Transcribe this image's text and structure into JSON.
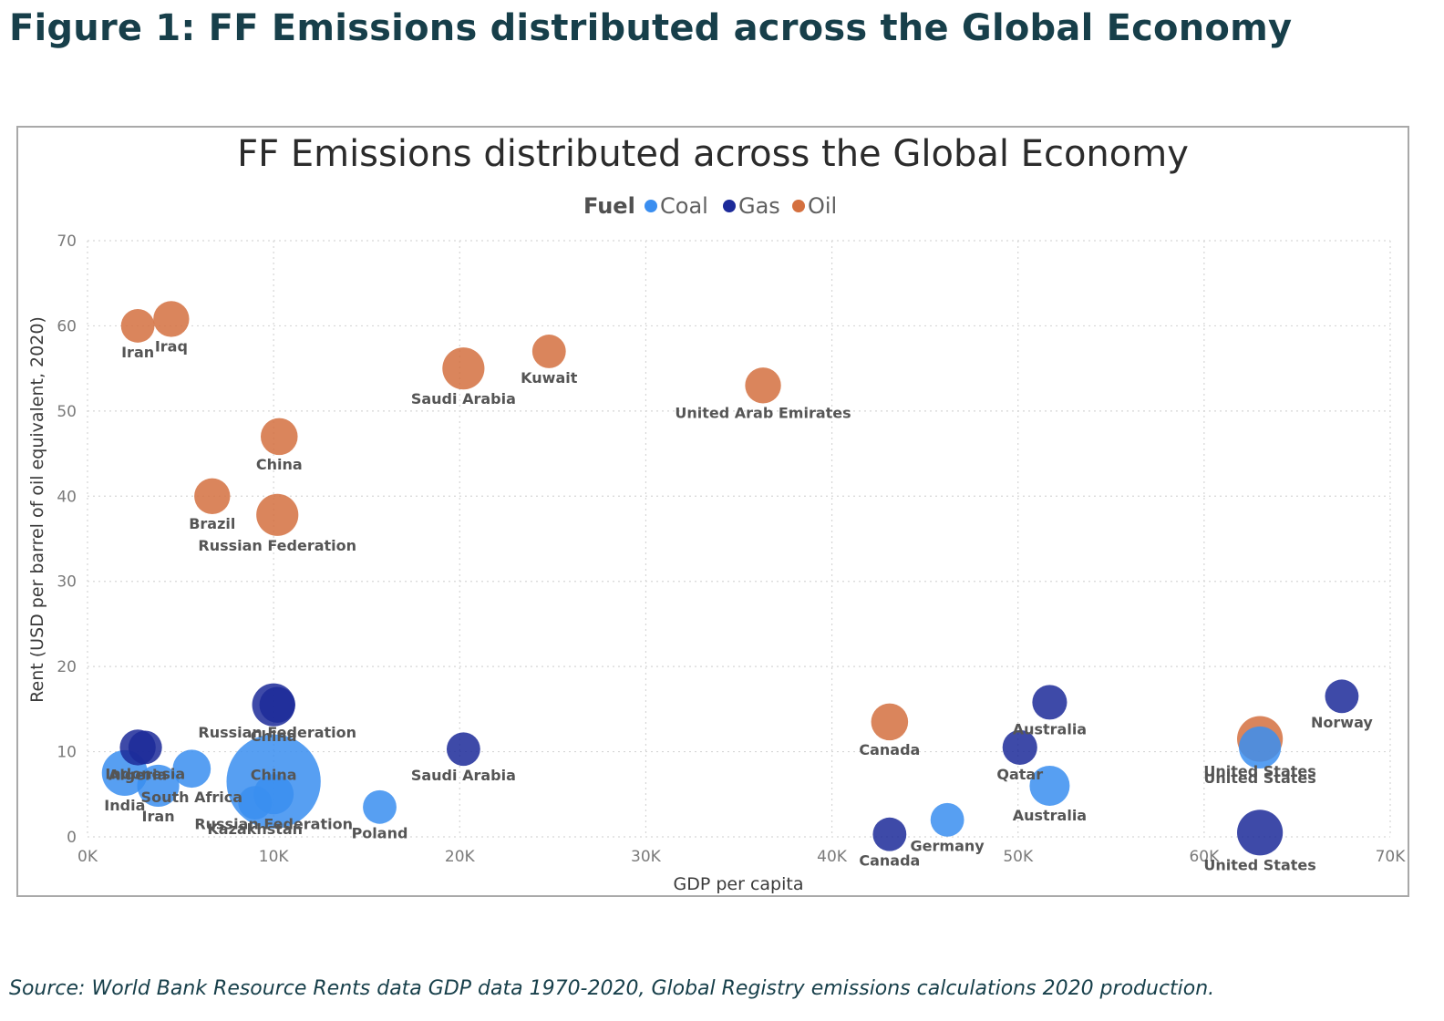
{
  "figure_title": "Figure 1: FF Emissions distributed across the Global Economy",
  "source": "Source: World Bank Resource Rents data GDP data 1970-2020, Global Registry emissions calculations 2020 production.",
  "colors": {
    "Coal": "#3a8ef0",
    "Gas": "#1c2a99",
    "Oil": "#d4703f"
  },
  "chart_data": {
    "type": "scatter",
    "title": "FF Emissions distributed across the Global Economy",
    "xlabel": "GDP per capita",
    "ylabel": "Rent (USD per barrel of oil equivalent, 2020)",
    "xlim": [
      0,
      70000
    ],
    "ylim": [
      0,
      70
    ],
    "xticks": [
      {
        "value": 0,
        "label": "0K"
      },
      {
        "value": 10000,
        "label": "10K"
      },
      {
        "value": 20000,
        "label": "20K"
      },
      {
        "value": 30000,
        "label": "30K"
      },
      {
        "value": 40000,
        "label": "40K"
      },
      {
        "value": 50000,
        "label": "50K"
      },
      {
        "value": 60000,
        "label": "60K"
      },
      {
        "value": 70000,
        "label": "70K"
      }
    ],
    "yticks": [
      {
        "value": 0,
        "label": "0"
      },
      {
        "value": 10,
        "label": "10"
      },
      {
        "value": 20,
        "label": "20"
      },
      {
        "value": 30,
        "label": "30"
      },
      {
        "value": 40,
        "label": "40"
      },
      {
        "value": 50,
        "label": "50"
      },
      {
        "value": 60,
        "label": "60"
      },
      {
        "value": 70,
        "label": "70"
      }
    ],
    "grid": true,
    "legend": {
      "title": "Fuel",
      "placement": "top-center",
      "entries": [
        "Coal",
        "Gas",
        "Oil"
      ]
    },
    "series": [
      {
        "name": "Coal",
        "points": [
          {
            "label": "India",
            "x": 2000,
            "y": 7.5,
            "size": 1.3
          },
          {
            "label": "Iran",
            "x": 3800,
            "y": 6.0,
            "size": 1.1
          },
          {
            "label": "South Africa",
            "x": 5600,
            "y": 8.0,
            "size": 0.9
          },
          {
            "label": "Kazakhstan",
            "x": 9000,
            "y": 4.0,
            "size": 0.7
          },
          {
            "label": "Russian Federation",
            "x": 10000,
            "y": 5.0,
            "size": 1.0
          },
          {
            "label": "China",
            "x": 10000,
            "y": 6.5,
            "size": 5.0
          },
          {
            "label": "Poland",
            "x": 15700,
            "y": 3.5,
            "size": 0.7
          },
          {
            "label": "Germany",
            "x": 46200,
            "y": 2.0,
            "size": 0.7
          },
          {
            "label": "Australia",
            "x": 51700,
            "y": 6.0,
            "size": 1.0
          },
          {
            "label": "United States",
            "x": 63000,
            "y": 10.5,
            "size": 1.1
          }
        ]
      },
      {
        "name": "Gas",
        "points": [
          {
            "label": "Algeria",
            "x": 2700,
            "y": 10.5,
            "size": 0.8
          },
          {
            "label": "Indonesia",
            "x": 3100,
            "y": 10.5,
            "size": 0.7
          },
          {
            "label": "China",
            "x": 10000,
            "y": 15.5,
            "size": 1.15
          },
          {
            "label": "Russian Federation",
            "x": 10200,
            "y": 15.5,
            "size": 0.8
          },
          {
            "label": "Saudi Arabia",
            "x": 20200,
            "y": 10.3,
            "size": 0.7
          },
          {
            "label": "Canada",
            "x": 43100,
            "y": 0.3,
            "size": 0.7
          },
          {
            "label": "Qatar",
            "x": 50100,
            "y": 10.5,
            "size": 0.75
          },
          {
            "label": "Australia",
            "x": 51700,
            "y": 15.8,
            "size": 0.75
          },
          {
            "label": "United States",
            "x": 63000,
            "y": 0.5,
            "size": 1.3
          },
          {
            "label": "Norway",
            "x": 67400,
            "y": 16.5,
            "size": 0.7
          }
        ]
      },
      {
        "name": "Oil",
        "points": [
          {
            "label": "Iran",
            "x": 2700,
            "y": 60.0,
            "size": 0.7
          },
          {
            "label": "Iraq",
            "x": 4500,
            "y": 60.8,
            "size": 0.8
          },
          {
            "label": "Brazil",
            "x": 6700,
            "y": 40.0,
            "size": 0.8
          },
          {
            "label": "China",
            "x": 10300,
            "y": 47.0,
            "size": 0.85
          },
          {
            "label": "Russian Federation",
            "x": 10200,
            "y": 37.8,
            "size": 1.1
          },
          {
            "label": "Saudi Arabia",
            "x": 20200,
            "y": 55.0,
            "size": 1.1
          },
          {
            "label": "Kuwait",
            "x": 24800,
            "y": 57.0,
            "size": 0.7
          },
          {
            "label": "United Arab Emirates",
            "x": 36300,
            "y": 53.0,
            "size": 0.8
          },
          {
            "label": "Canada",
            "x": 43100,
            "y": 13.5,
            "size": 0.85
          },
          {
            "label": "United States",
            "x": 63000,
            "y": 11.5,
            "size": 1.3
          }
        ]
      }
    ]
  }
}
